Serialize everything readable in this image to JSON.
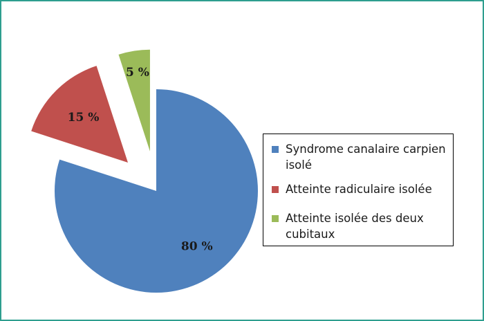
{
  "chart_data": {
    "type": "pie",
    "categories": [
      "Syndrome canalaire carpien isolé",
      "Atteinte radiculaire isolée",
      "Atteinte isolée des deux cubitaux"
    ],
    "values": [
      80,
      15,
      5
    ],
    "data_labels": [
      "80 %",
      "15 %",
      "5 %"
    ],
    "colors": [
      "#4f81bd",
      "#c0504d",
      "#9bbb59"
    ],
    "exploded": [
      false,
      true,
      true
    ],
    "legend_position": "right",
    "title": ""
  },
  "legend": {
    "items": [
      {
        "label": "Syndrome canalaire carpien isolé",
        "color": "#4f81bd"
      },
      {
        "label": "Atteinte radiculaire isolée",
        "color": "#c0504d"
      },
      {
        "label": "Atteinte isolée des deux cubitaux",
        "color": "#9bbb59"
      }
    ]
  }
}
